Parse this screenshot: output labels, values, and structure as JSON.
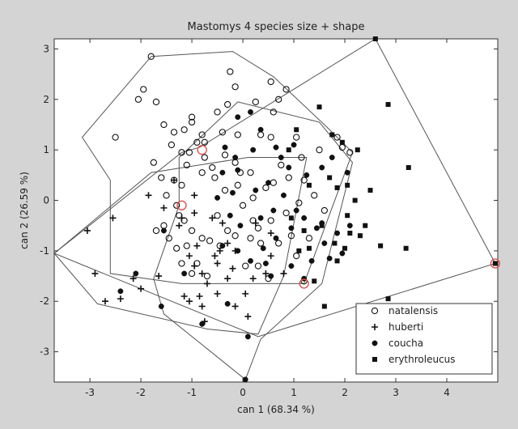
{
  "chart_data": {
    "type": "scatter",
    "title": "Mastomys 4 species size + shape",
    "xlabel": "can 1  (68.34 %)",
    "ylabel": "can 2  (26.59 %)",
    "xlim": [
      -3.7,
      5.0
    ],
    "ylim": [
      -3.6,
      3.2
    ],
    "xticks": [
      "-3",
      "-2",
      "-1",
      "0",
      "1",
      "2",
      "3",
      "4"
    ],
    "yticks": [
      "3",
      "2",
      "1",
      "0",
      "-1",
      "-2",
      "-3"
    ],
    "grid": false,
    "legend_position": "bottom-right",
    "series": [
      {
        "name": "natalensis",
        "marker": "circle",
        "points": [
          [
            -1.8,
            2.85
          ],
          [
            -1.95,
            2.2
          ],
          [
            -2.05,
            2.0
          ],
          [
            -1.7,
            1.95
          ],
          [
            -1.0,
            1.65
          ],
          [
            -0.5,
            1.75
          ],
          [
            -0.3,
            1.9
          ],
          [
            0.7,
            2.0
          ],
          [
            0.6,
            1.75
          ],
          [
            0.25,
            1.95
          ],
          [
            -1.0,
            1.55
          ],
          [
            -0.8,
            1.3
          ],
          [
            -0.75,
            1.15
          ],
          [
            -0.4,
            1.35
          ],
          [
            -0.9,
            1.15
          ],
          [
            -0.1,
            1.3
          ],
          [
            -1.55,
            1.5
          ],
          [
            -1.35,
            1.35
          ],
          [
            -1.15,
            1.4
          ],
          [
            -2.5,
            1.25
          ],
          [
            -1.4,
            1.1
          ],
          [
            -1.05,
            0.95
          ],
          [
            -1.2,
            0.95
          ],
          [
            -1.75,
            0.75
          ],
          [
            -1.1,
            0.7
          ],
          [
            -0.75,
            0.85
          ],
          [
            -0.35,
            0.9
          ],
          [
            -0.15,
            0.75
          ],
          [
            0.15,
            0.55
          ],
          [
            -0.6,
            0.65
          ],
          [
            -0.8,
            0.55
          ],
          [
            -1.6,
            0.45
          ],
          [
            -1.35,
            0.4
          ],
          [
            -1.2,
            0.3
          ],
          [
            -1.5,
            0.1
          ],
          [
            -1.3,
            -0.1
          ],
          [
            -1.25,
            -0.3
          ],
          [
            -1.15,
            -0.4
          ],
          [
            -1.55,
            -0.5
          ],
          [
            -1.7,
            -0.6
          ],
          [
            -1.45,
            -0.75
          ],
          [
            -1.0,
            -0.6
          ],
          [
            -0.8,
            -0.75
          ],
          [
            -0.65,
            -0.8
          ],
          [
            -0.45,
            -0.9
          ],
          [
            -1.3,
            -0.95
          ],
          [
            -1.1,
            -0.9
          ],
          [
            -0.3,
            -0.6
          ],
          [
            -0.15,
            -0.7
          ],
          [
            0.15,
            -0.75
          ],
          [
            0.35,
            -0.85
          ],
          [
            -0.9,
            -1.25
          ],
          [
            -1.0,
            -1.45
          ],
          [
            -1.2,
            -1.25
          ],
          [
            -0.7,
            -1.5
          ],
          [
            0.0,
            -0.1
          ],
          [
            0.2,
            0.05
          ],
          [
            0.45,
            0.25
          ],
          [
            -0.35,
            0.2
          ],
          [
            -0.1,
            0.3
          ],
          [
            0.6,
            0.35
          ],
          [
            0.9,
            0.45
          ],
          [
            1.2,
            0.4
          ],
          [
            1.4,
            0.1
          ],
          [
            1.6,
            -0.2
          ],
          [
            1.1,
            -0.05
          ],
          [
            0.85,
            -0.25
          ],
          [
            0.55,
            -0.4
          ],
          [
            0.3,
            -0.55
          ],
          [
            0.7,
            -0.85
          ],
          [
            0.95,
            -0.7
          ],
          [
            1.3,
            -0.75
          ],
          [
            1.05,
            -1.1
          ],
          [
            0.5,
            -1.55
          ],
          [
            0.3,
            -1.3
          ],
          [
            0.05,
            -1.3
          ],
          [
            1.2,
            -1.6
          ],
          [
            1.85,
            1.25
          ],
          [
            1.95,
            1.05
          ],
          [
            2.1,
            0.95
          ],
          [
            1.5,
            1.0
          ],
          [
            1.15,
            0.85
          ],
          [
            1.05,
            1.25
          ],
          [
            0.55,
            1.25
          ],
          [
            0.35,
            1.3
          ],
          [
            -0.05,
            0.55
          ],
          [
            -0.55,
            0.45
          ],
          [
            0.2,
            -0.4
          ],
          [
            -0.5,
            -0.3
          ],
          [
            0.75,
            0.7
          ],
          [
            0.55,
            2.35
          ],
          [
            0.85,
            2.2
          ],
          [
            -0.25,
            2.55
          ],
          [
            -0.15,
            2.25
          ]
        ]
      },
      {
        "name": "huberti",
        "marker": "plus",
        "points": [
          [
            -1.35,
            0.4
          ],
          [
            -0.95,
            0.1
          ],
          [
            -0.95,
            -0.25
          ],
          [
            -1.2,
            -0.35
          ],
          [
            -1.05,
            -1.1
          ],
          [
            -0.95,
            -1.3
          ],
          [
            -0.55,
            -1.1
          ],
          [
            -0.5,
            -1.25
          ],
          [
            -0.7,
            -1.65
          ],
          [
            -0.3,
            -1.55
          ],
          [
            -0.5,
            -1.85
          ],
          [
            -1.15,
            -1.9
          ],
          [
            -1.05,
            -2.0
          ],
          [
            -0.8,
            -2.1
          ],
          [
            -0.75,
            -2.4
          ],
          [
            0.2,
            -1.55
          ],
          [
            0.05,
            -1.85
          ],
          [
            -0.15,
            -2.1
          ],
          [
            0.1,
            -2.3
          ],
          [
            0.55,
            -1.1
          ],
          [
            0.8,
            -1.45
          ],
          [
            -2.15,
            -1.55
          ],
          [
            -2.4,
            -1.95
          ],
          [
            -2.9,
            -1.45
          ],
          [
            -3.05,
            -0.6
          ],
          [
            -2.55,
            -0.35
          ],
          [
            -1.65,
            -1.5
          ],
          [
            -0.8,
            -1.45
          ],
          [
            -0.85,
            -1.9
          ],
          [
            -1.25,
            -0.5
          ],
          [
            -0.4,
            -0.45
          ],
          [
            -0.3,
            -0.85
          ],
          [
            -0.9,
            -0.9
          ],
          [
            -0.6,
            -0.35
          ],
          [
            -1.85,
            0.1
          ],
          [
            -1.55,
            -0.15
          ],
          [
            -2.7,
            -2.0
          ],
          [
            -2.0,
            -1.75
          ],
          [
            -0.45,
            -1.0
          ],
          [
            0.25,
            -0.45
          ],
          [
            0.55,
            -0.65
          ],
          [
            -0.15,
            -1.0
          ],
          [
            -0.2,
            -1.35
          ],
          [
            0.45,
            -1.45
          ]
        ]
      },
      {
        "name": "coucha",
        "marker": "filled-circle",
        "points": [
          [
            -0.1,
            1.65
          ],
          [
            0.15,
            1.75
          ],
          [
            0.35,
            1.4
          ],
          [
            0.65,
            1.05
          ],
          [
            0.9,
            0.65
          ],
          [
            0.5,
            0.35
          ],
          [
            0.8,
            0.1
          ],
          [
            1.05,
            -0.2
          ],
          [
            0.6,
            -0.2
          ],
          [
            0.35,
            -0.35
          ],
          [
            0.95,
            -0.55
          ],
          [
            1.2,
            -0.35
          ],
          [
            1.45,
            -0.55
          ],
          [
            1.6,
            -0.85
          ],
          [
            1.7,
            -1.15
          ],
          [
            1.2,
            -1.55
          ],
          [
            0.95,
            -1.3
          ],
          [
            1.35,
            -1.2
          ],
          [
            1.55,
            -0.45
          ],
          [
            1.25,
            0.5
          ],
          [
            1.55,
            0.65
          ],
          [
            1.75,
            0.85
          ],
          [
            2.05,
            0.55
          ],
          [
            -0.1,
            -1.0
          ],
          [
            -0.4,
            -0.9
          ],
          [
            -0.25,
            -0.3
          ],
          [
            -0.5,
            0.05
          ],
          [
            -0.1,
            0.6
          ],
          [
            0.2,
            1.0
          ],
          [
            -0.35,
            1.05
          ],
          [
            -0.15,
            0.85
          ],
          [
            -0.4,
            0.55
          ],
          [
            0.4,
            -0.95
          ],
          [
            0.15,
            -1.2
          ],
          [
            0.45,
            -1.25
          ],
          [
            0.1,
            -2.7
          ],
          [
            0.05,
            -3.55
          ],
          [
            -1.6,
            -2.1
          ],
          [
            -2.1,
            -1.45
          ],
          [
            -1.15,
            -1.45
          ],
          [
            1.85,
            -0.65
          ],
          [
            1.95,
            -1.05
          ],
          [
            2.1,
            -0.5
          ],
          [
            0.75,
            0.85
          ],
          [
            1.0,
            1.1
          ],
          [
            -0.05,
            -0.5
          ],
          [
            0.65,
            -0.75
          ],
          [
            -0.2,
            0.15
          ],
          [
            0.25,
            0.2
          ],
          [
            0.55,
            -1.5
          ],
          [
            -1.55,
            -0.6
          ],
          [
            -2.4,
            -1.8
          ],
          [
            -0.8,
            -2.45
          ],
          [
            -0.3,
            -2.05
          ]
        ]
      },
      {
        "name": "erythroleucus",
        "marker": "square",
        "points": [
          [
            1.05,
            1.4
          ],
          [
            1.5,
            1.85
          ],
          [
            1.75,
            1.3
          ],
          [
            1.95,
            1.15
          ],
          [
            2.25,
            1.0
          ],
          [
            1.85,
            0.25
          ],
          [
            2.2,
            0.0
          ],
          [
            2.5,
            0.2
          ],
          [
            2.85,
            1.9
          ],
          [
            3.25,
            0.65
          ],
          [
            1.55,
            -0.5
          ],
          [
            2.05,
            -0.3
          ],
          [
            2.3,
            -0.7
          ],
          [
            2.7,
            -0.9
          ],
          [
            3.2,
            -0.95
          ],
          [
            2.0,
            -0.95
          ],
          [
            1.85,
            -1.2
          ],
          [
            1.4,
            -1.6
          ],
          [
            1.6,
            -2.1
          ],
          [
            2.85,
            -1.95
          ],
          [
            1.3,
            0.3
          ],
          [
            1.8,
            -0.85
          ],
          [
            1.1,
            -1.0
          ],
          [
            0.95,
            -0.35
          ],
          [
            2.4,
            -0.5
          ],
          [
            2.1,
            -0.65
          ],
          [
            1.3,
            -0.95
          ],
          [
            0.9,
            1.0
          ],
          [
            1.7,
            0.45
          ],
          [
            2.05,
            0.3
          ],
          [
            1.2,
            -0.6
          ],
          [
            2.6,
            3.2
          ],
          [
            4.95,
            -1.25
          ]
        ]
      }
    ],
    "hulls": [
      {
        "series": "natalensis",
        "vertices": [
          [
            -1.8,
            2.85
          ],
          [
            -0.2,
            2.95
          ],
          [
            0.6,
            2.45
          ],
          [
            1.65,
            1.45
          ],
          [
            2.15,
            0.95
          ],
          [
            1.2,
            -1.65
          ],
          [
            0.5,
            -1.65
          ],
          [
            -1.2,
            -1.65
          ],
          [
            -2.6,
            -1.45
          ],
          [
            -2.6,
            0.4
          ],
          [
            -3.15,
            1.25
          ]
        ]
      },
      {
        "series": "huberti",
        "vertices": [
          [
            -3.7,
            -1.05
          ],
          [
            -1.8,
            0.55
          ],
          [
            0.1,
            0.85
          ],
          [
            1.25,
            0.85
          ],
          [
            0.8,
            -1.5
          ],
          [
            0.3,
            -2.65
          ],
          [
            -0.7,
            -2.55
          ],
          [
            -2.85,
            -2.05
          ]
        ]
      },
      {
        "series": "coucha",
        "vertices": [
          [
            -0.1,
            1.95
          ],
          [
            1.5,
            1.55
          ],
          [
            2.15,
            0.75
          ],
          [
            1.55,
            -1.65
          ],
          [
            0.35,
            -2.75
          ],
          [
            0.05,
            -3.55
          ],
          [
            -1.55,
            -2.25
          ],
          [
            -1.75,
            -1.55
          ],
          [
            -1.25,
            -0.1
          ],
          [
            -1.25,
            0.85
          ]
        ]
      },
      {
        "series": "erythroleucus",
        "vertices": [
          [
            2.6,
            3.2
          ],
          [
            4.95,
            -1.25
          ],
          [
            0.3,
            -2.7
          ],
          [
            -3.7,
            -1.05
          ],
          [
            -1.2,
            0.95
          ],
          [
            -0.85,
            1.05
          ]
        ]
      }
    ],
    "highlighted_points": [
      [
        -1.2,
        -0.1
      ],
      [
        -0.8,
        1.0
      ],
      [
        1.2,
        -1.65
      ],
      [
        4.95,
        -1.25
      ]
    ]
  }
}
